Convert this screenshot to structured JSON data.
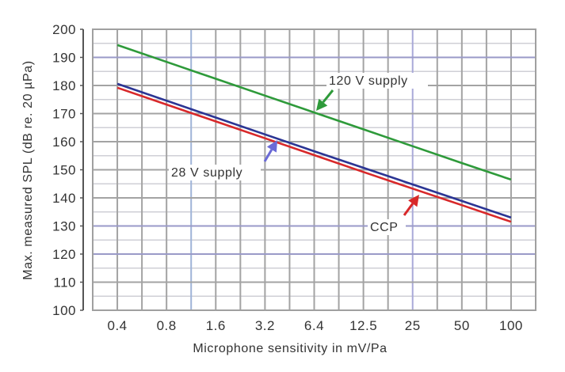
{
  "chart_data": {
    "type": "line",
    "title": "",
    "xlabel": "Microphone sensitivity in mV/Pa",
    "ylabel": "Max. measured SPL (dB re. 20 µPa)",
    "x_scale": "log2",
    "categories": [
      "0.4",
      "0.8",
      "1.6",
      "3.2",
      "6.4",
      "12.5",
      "25",
      "50",
      "100"
    ],
    "ylim": [
      100,
      200
    ],
    "yticks": [
      100,
      110,
      120,
      130,
      140,
      150,
      160,
      170,
      180,
      190,
      200
    ],
    "grid": true,
    "series": [
      {
        "name": "120 V supply",
        "color": "#2e9a3a",
        "values": [
          194.4,
          188.4,
          182.4,
          176.4,
          170.4,
          164.4,
          158.4,
          152.4,
          146.5
        ]
      },
      {
        "name": "28 V supply",
        "color": "#2b3594",
        "values": [
          180.6,
          174.6,
          168.6,
          162.6,
          156.6,
          150.7,
          144.8,
          138.9,
          133.0
        ]
      },
      {
        "name": "CCP",
        "color": "#d8282a",
        "values": [
          179.2,
          173.2,
          167.2,
          161.2,
          155.2,
          149.2,
          143.3,
          137.4,
          131.5
        ]
      }
    ],
    "annotations": [
      {
        "text": "120 V supply",
        "series": "120 V supply",
        "arrow_color": "#2e9a3a"
      },
      {
        "text": "28 V supply",
        "series": "28 V supply",
        "arrow_color": "#6a6ad6"
      },
      {
        "text": "CCP",
        "series": "CCP",
        "arrow_color": "#d8282a"
      }
    ]
  }
}
